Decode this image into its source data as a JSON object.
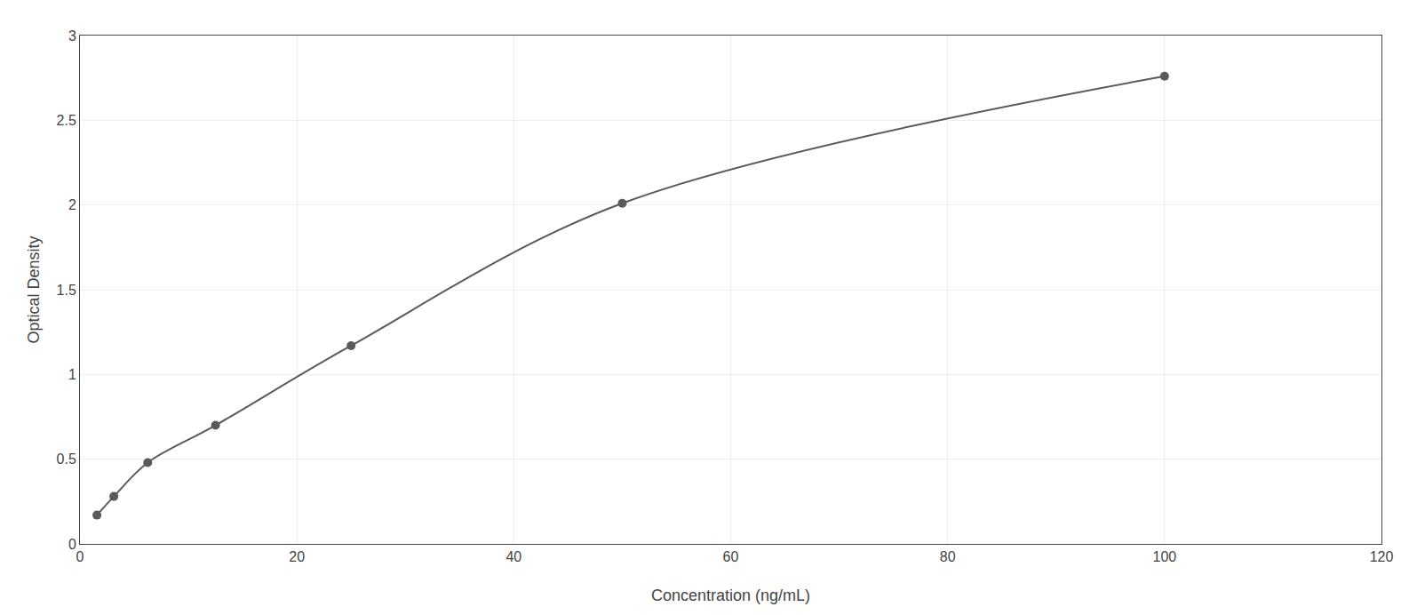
{
  "chart_data": {
    "type": "line",
    "x": [
      1.5625,
      3.125,
      6.25,
      12.5,
      25,
      50,
      100
    ],
    "values": [
      0.17,
      0.28,
      0.48,
      0.7,
      1.17,
      2.01,
      2.76
    ],
    "color": "#5a5a5a",
    "marker": "circle",
    "line_style": "solid",
    "xlabel": "Concentration (ng/mL)",
    "ylabel": "Optical Density",
    "xlim": [
      0,
      120
    ],
    "ylim": [
      0,
      3
    ],
    "xticks": [
      0,
      20,
      40,
      60,
      80,
      100,
      120
    ],
    "yticks": [
      0,
      0.5,
      1,
      1.5,
      2,
      2.5,
      3
    ],
    "grid": true
  }
}
